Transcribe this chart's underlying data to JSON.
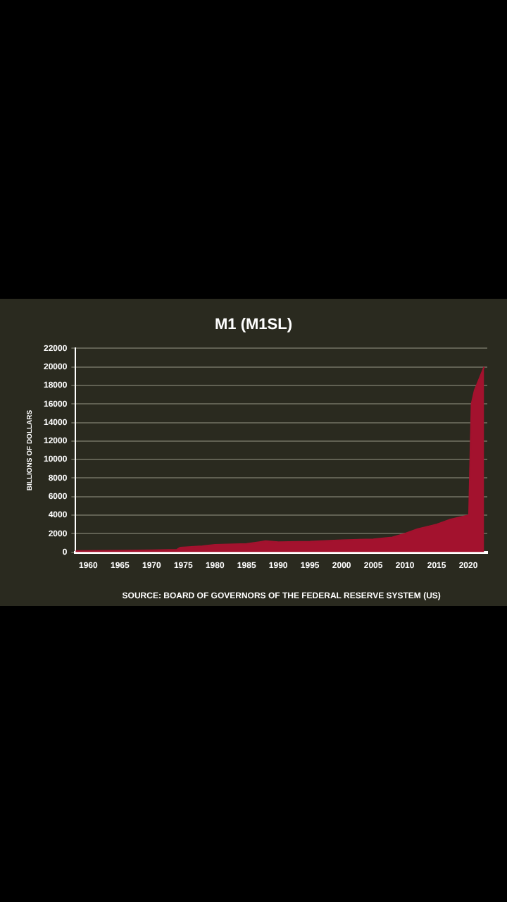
{
  "chart_data": {
    "type": "area",
    "title": "M1 (M1SL)",
    "ylabel": "BILLIONS OF DOLLARS",
    "annotations": [
      "SOURCE: BOARD OF GOVERNORS OF THE FEDERAL RESERVE SYSTEM (US)"
    ],
    "x": [
      1958,
      1965,
      1970,
      1974,
      1974.5,
      1978,
      1980,
      1985,
      1987,
      1988,
      1990,
      1995,
      2000,
      2005,
      2008,
      2010,
      2012,
      2015,
      2017,
      2020.1,
      2020.5,
      2021,
      2022.5
    ],
    "series": [
      {
        "color": "#a3122e",
        "values": [
          150,
          170,
          210,
          280,
          500,
          650,
          800,
          900,
          1100,
          1200,
          1100,
          1150,
          1300,
          1400,
          1600,
          2000,
          2500,
          3000,
          3500,
          4000,
          16000,
          17500,
          20000
        ]
      }
    ],
    "xlim": [
      1958,
      2023
    ],
    "xticks": [
      1960,
      1965,
      1970,
      1975,
      1980,
      1985,
      1990,
      1995,
      2000,
      2005,
      2010,
      2015,
      2020
    ],
    "ylim": [
      0,
      22000
    ],
    "yticks": [
      0,
      2000,
      4000,
      6000,
      8000,
      10000,
      12000,
      14000,
      16000,
      18000,
      20000,
      22000
    ],
    "grid": "y",
    "legend": false
  }
}
